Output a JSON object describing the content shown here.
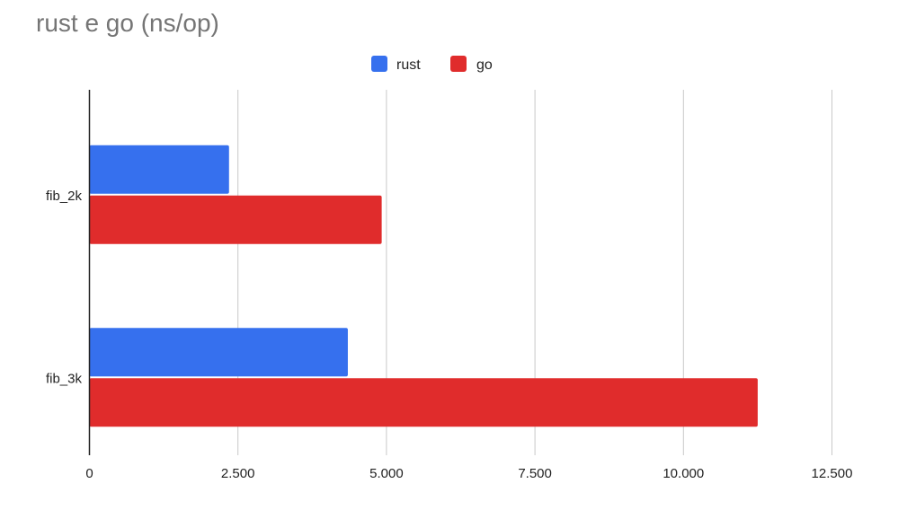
{
  "chart_data": {
    "type": "bar",
    "orientation": "horizontal",
    "title": "rust e go (ns/op)",
    "categories": [
      "fib_2k",
      "fib_3k"
    ],
    "series": [
      {
        "name": "rust",
        "color": "#3670ee",
        "values": [
          2350,
          4350
        ]
      },
      {
        "name": "go",
        "color": "#e02c2c",
        "values": [
          4920,
          11250
        ]
      }
    ],
    "xlim": [
      0,
      12500
    ],
    "xticks": [
      0,
      2500,
      5000,
      7500,
      10000,
      12500
    ],
    "xtick_labels": [
      "0",
      "2.500",
      "5.000",
      "7.500",
      "10.000",
      "12.500"
    ],
    "grid": "vertical",
    "legend_position": "top-center"
  }
}
